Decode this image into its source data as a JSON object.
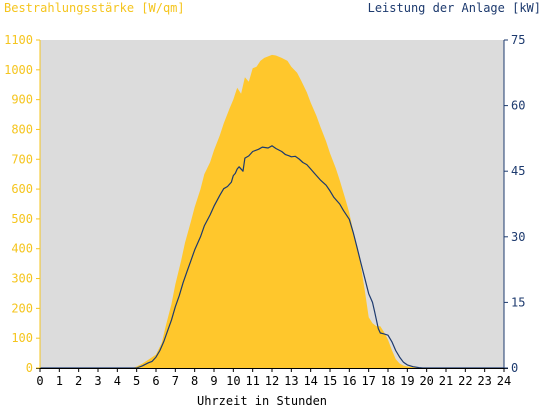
{
  "chart_data": {
    "type": "area",
    "title_left": "Bestrahlungsstärke [W/qm]",
    "title_right": "Leistung der Anlage [kW]",
    "xlabel": "Uhrzeit in Stunden",
    "x_ticks": [
      "0",
      "1",
      "2",
      "3",
      "4",
      "5",
      "6",
      "7",
      "8",
      "9",
      "10",
      "11",
      "12",
      "13",
      "14",
      "15",
      "16",
      "17",
      "18",
      "19",
      "20",
      "21",
      "22",
      "23",
      "24"
    ],
    "xlim": [
      0,
      24
    ],
    "y_left": {
      "ticks": [
        "0",
        "100",
        "200",
        "300",
        "400",
        "500",
        "600",
        "700",
        "800",
        "900",
        "1000",
        "1100"
      ],
      "lim": [
        0,
        1100
      ]
    },
    "y_right": {
      "ticks": [
        "0",
        "15",
        "30",
        "45",
        "60",
        "75"
      ],
      "lim": [
        0,
        75
      ]
    },
    "grid": false,
    "colors": {
      "irradiance": "#ffc72c",
      "power": "#1d3a6e",
      "plot_bg": "#dcdcdc",
      "left_axis": "#f5c51e",
      "right_axis": "#1d3a6e"
    },
    "series": [
      {
        "axis": "left",
        "style": "area",
        "x": [
          0,
          4.8,
          5.0,
          5.3,
          5.6,
          6.0,
          6.3,
          6.5,
          6.8,
          7.0,
          7.3,
          7.5,
          7.8,
          8.0,
          8.3,
          8.5,
          8.8,
          9.0,
          9.3,
          9.5,
          9.8,
          10.0,
          10.2,
          10.4,
          10.6,
          10.8,
          11.0,
          11.2,
          11.4,
          11.6,
          11.8,
          12.0,
          12.2,
          12.5,
          12.8,
          13.0,
          13.3,
          13.5,
          13.8,
          14.0,
          14.3,
          14.5,
          14.8,
          15.0,
          15.3,
          15.5,
          15.8,
          16.0,
          16.3,
          16.5,
          16.8,
          17.0,
          17.2,
          17.4,
          17.6,
          17.8,
          18.0,
          18.2,
          18.4,
          18.6,
          18.8,
          19.0,
          19.3,
          19.6,
          20.0,
          20.3,
          24
        ],
        "values": [
          0,
          0,
          5,
          15,
          28,
          45,
          85,
          140,
          215,
          280,
          360,
          420,
          490,
          540,
          600,
          650,
          690,
          730,
          780,
          820,
          870,
          900,
          940,
          920,
          975,
          960,
          1005,
          1010,
          1030,
          1040,
          1045,
          1050,
          1048,
          1040,
          1030,
          1010,
          990,
          965,
          925,
          890,
          845,
          810,
          760,
          720,
          670,
          630,
          565,
          520,
          430,
          380,
          260,
          170,
          150,
          140,
          140,
          120,
          95,
          60,
          30,
          15,
          8,
          5,
          3,
          2,
          1,
          0,
          0
        ]
      },
      {
        "axis": "right",
        "style": "line",
        "x": [
          0,
          5.0,
          5.3,
          5.6,
          5.8,
          6.0,
          6.2,
          6.4,
          6.6,
          6.8,
          7.0,
          7.2,
          7.4,
          7.6,
          7.8,
          8.0,
          8.3,
          8.5,
          8.8,
          9.0,
          9.3,
          9.5,
          9.7,
          9.9,
          10.0,
          10.1,
          10.2,
          10.3,
          10.5,
          10.6,
          10.8,
          11.0,
          11.3,
          11.5,
          11.8,
          12.0,
          12.2,
          12.5,
          12.7,
          12.9,
          13.0,
          13.2,
          13.4,
          13.6,
          13.8,
          14.0,
          14.2,
          14.5,
          14.8,
          15.0,
          15.2,
          15.5,
          15.7,
          16.0,
          16.2,
          16.4,
          16.6,
          16.8,
          17.0,
          17.1,
          17.2,
          17.3,
          17.4,
          17.5,
          17.6,
          17.8,
          18.0,
          18.2,
          18.4,
          18.6,
          18.8,
          19.0,
          19.3,
          19.6,
          19.8,
          20.0,
          24
        ],
        "values": [
          0,
          0,
          0.5,
          1.2,
          1.5,
          2.5,
          4,
          6,
          8.5,
          11,
          14,
          16.5,
          19.5,
          22,
          24.5,
          27,
          30,
          32.5,
          35,
          37,
          39.5,
          41,
          41.5,
          42.5,
          44,
          44.5,
          45.5,
          46,
          45,
          48,
          48.5,
          49.5,
          50,
          50.5,
          50.3,
          50.8,
          50.2,
          49.5,
          48.8,
          48.5,
          48.3,
          48.4,
          47.8,
          47,
          46.5,
          45.5,
          44.5,
          43,
          41.8,
          40.5,
          39,
          37.5,
          36,
          34,
          31,
          27.5,
          24,
          20.5,
          17,
          16,
          15,
          13,
          11,
          9,
          8,
          7.8,
          7.5,
          6,
          4,
          2.5,
          1.3,
          0.7,
          0.3,
          0.1,
          0,
          0,
          0
        ]
      }
    ]
  }
}
